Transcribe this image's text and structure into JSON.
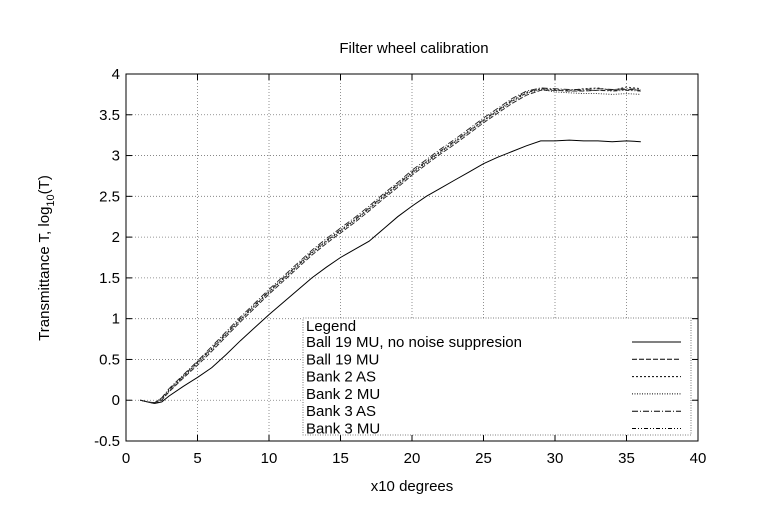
{
  "chart_data": {
    "type": "line",
    "title": "Filter wheel calibration",
    "xlabel": "x10 degrees",
    "ylabel_main": "Transmittance T, log",
    "ylabel_sub": "10",
    "ylabel_tail": "(T)",
    "xlim": [
      0,
      40
    ],
    "ylim": [
      -0.5,
      4
    ],
    "xticks": [
      0,
      5,
      10,
      15,
      20,
      25,
      30,
      35,
      40
    ],
    "yticks": [
      -0.5,
      0,
      0.5,
      1,
      1.5,
      2,
      2.5,
      3,
      3.5,
      4
    ],
    "xtick_labels": [
      "0",
      "5",
      "10",
      "15",
      "20",
      "25",
      "30",
      "35",
      "40"
    ],
    "ytick_labels": [
      "-0.5",
      "0",
      "0.5",
      "1",
      "1.5",
      "2",
      "2.5",
      "3",
      "3.5",
      "4"
    ],
    "grid": true,
    "legend_title": "Legend",
    "legend_position": "bottom-right",
    "series": [
      {
        "name": "Ball 19 MU, no noise suppresion",
        "dash": "",
        "points": [
          [
            1,
            0
          ],
          [
            1.5,
            -0.02
          ],
          [
            2,
            -0.04
          ],
          [
            2.5,
            -0.02
          ],
          [
            3,
            0.05
          ],
          [
            4,
            0.17
          ],
          [
            5,
            0.28
          ],
          [
            6,
            0.4
          ],
          [
            7,
            0.56
          ],
          [
            8,
            0.73
          ],
          [
            9,
            0.89
          ],
          [
            10,
            1.05
          ],
          [
            11,
            1.2
          ],
          [
            12,
            1.35
          ],
          [
            13,
            1.5
          ],
          [
            14,
            1.63
          ],
          [
            15,
            1.75
          ],
          [
            16,
            1.85
          ],
          [
            17,
            1.95
          ],
          [
            18,
            2.1
          ],
          [
            19,
            2.25
          ],
          [
            20,
            2.38
          ],
          [
            21,
            2.5
          ],
          [
            22,
            2.6
          ],
          [
            23,
            2.7
          ],
          [
            24,
            2.8
          ],
          [
            25,
            2.9
          ],
          [
            26,
            2.98
          ],
          [
            27,
            3.05
          ],
          [
            28,
            3.12
          ],
          [
            29,
            3.18
          ],
          [
            30,
            3.18
          ],
          [
            31,
            3.19
          ],
          [
            32,
            3.18
          ],
          [
            33,
            3.18
          ],
          [
            34,
            3.17
          ],
          [
            35,
            3.18
          ],
          [
            36,
            3.17
          ]
        ]
      },
      {
        "name": "Ball 19 MU",
        "dash": "5,2",
        "points": [
          [
            1,
            0
          ],
          [
            1.5,
            -0.02
          ],
          [
            2,
            -0.04
          ],
          [
            2.5,
            0
          ],
          [
            3,
            0.1
          ],
          [
            4,
            0.27
          ],
          [
            5,
            0.43
          ],
          [
            6,
            0.6
          ],
          [
            7,
            0.78
          ],
          [
            8,
            0.96
          ],
          [
            9,
            1.13
          ],
          [
            10,
            1.3
          ],
          [
            11,
            1.46
          ],
          [
            12,
            1.62
          ],
          [
            13,
            1.78
          ],
          [
            14,
            1.92
          ],
          [
            15,
            2.05
          ],
          [
            16,
            2.18
          ],
          [
            17,
            2.32
          ],
          [
            18,
            2.47
          ],
          [
            19,
            2.61
          ],
          [
            20,
            2.76
          ],
          [
            21,
            2.89
          ],
          [
            22,
            3.02
          ],
          [
            23,
            3.14
          ],
          [
            24,
            3.27
          ],
          [
            25,
            3.4
          ],
          [
            26,
            3.52
          ],
          [
            27,
            3.64
          ],
          [
            28,
            3.74
          ],
          [
            29,
            3.8
          ],
          [
            30,
            3.8
          ],
          [
            31,
            3.79
          ],
          [
            32,
            3.79
          ],
          [
            33,
            3.8
          ],
          [
            34,
            3.8
          ],
          [
            35,
            3.81
          ],
          [
            36,
            3.8
          ]
        ]
      },
      {
        "name": "Bank 2 AS",
        "dash": "2,2",
        "points": [
          [
            1,
            0
          ],
          [
            1.5,
            -0.02
          ],
          [
            2,
            -0.03
          ],
          [
            2.5,
            0.02
          ],
          [
            3,
            0.12
          ],
          [
            4,
            0.29
          ],
          [
            5,
            0.46
          ],
          [
            6,
            0.63
          ],
          [
            7,
            0.81
          ],
          [
            8,
            0.99
          ],
          [
            9,
            1.16
          ],
          [
            10,
            1.33
          ],
          [
            11,
            1.49
          ],
          [
            12,
            1.65
          ],
          [
            13,
            1.81
          ],
          [
            14,
            1.95
          ],
          [
            15,
            2.08
          ],
          [
            16,
            2.21
          ],
          [
            17,
            2.35
          ],
          [
            18,
            2.5
          ],
          [
            19,
            2.64
          ],
          [
            20,
            2.79
          ],
          [
            21,
            2.92
          ],
          [
            22,
            3.05
          ],
          [
            23,
            3.17
          ],
          [
            24,
            3.3
          ],
          [
            25,
            3.43
          ],
          [
            26,
            3.55
          ],
          [
            27,
            3.67
          ],
          [
            28,
            3.77
          ],
          [
            29,
            3.82
          ],
          [
            30,
            3.81
          ],
          [
            31,
            3.8
          ],
          [
            32,
            3.82
          ],
          [
            33,
            3.83
          ],
          [
            34,
            3.8
          ],
          [
            35,
            3.84
          ],
          [
            36,
            3.82
          ]
        ]
      },
      {
        "name": "Bank 2 MU",
        "dash": "1,1.5",
        "points": [
          [
            1,
            0
          ],
          [
            1.5,
            -0.02
          ],
          [
            2,
            -0.03
          ],
          [
            2.5,
            0.01
          ],
          [
            3,
            0.11
          ],
          [
            4,
            0.28
          ],
          [
            5,
            0.45
          ],
          [
            6,
            0.62
          ],
          [
            7,
            0.8
          ],
          [
            8,
            0.98
          ],
          [
            9,
            1.15
          ],
          [
            10,
            1.32
          ],
          [
            11,
            1.48
          ],
          [
            12,
            1.64
          ],
          [
            13,
            1.8
          ],
          [
            14,
            1.94
          ],
          [
            15,
            2.07
          ],
          [
            16,
            2.2
          ],
          [
            17,
            2.34
          ],
          [
            18,
            2.49
          ],
          [
            19,
            2.63
          ],
          [
            20,
            2.78
          ],
          [
            21,
            2.91
          ],
          [
            22,
            3.04
          ],
          [
            23,
            3.16
          ],
          [
            24,
            3.29
          ],
          [
            25,
            3.42
          ],
          [
            26,
            3.54
          ],
          [
            27,
            3.66
          ],
          [
            28,
            3.76
          ],
          [
            29,
            3.81
          ],
          [
            30,
            3.78
          ],
          [
            31,
            3.77
          ],
          [
            32,
            3.76
          ],
          [
            33,
            3.76
          ],
          [
            34,
            3.75
          ],
          [
            35,
            3.76
          ],
          [
            36,
            3.75
          ]
        ]
      },
      {
        "name": "Bank 3 AS",
        "dash": "6,2,1,2",
        "points": [
          [
            1,
            0
          ],
          [
            1.5,
            -0.02
          ],
          [
            2,
            -0.03
          ],
          [
            2.5,
            0.03
          ],
          [
            3,
            0.14
          ],
          [
            4,
            0.31
          ],
          [
            5,
            0.48
          ],
          [
            6,
            0.66
          ],
          [
            7,
            0.84
          ],
          [
            8,
            1.02
          ],
          [
            9,
            1.19
          ],
          [
            10,
            1.36
          ],
          [
            11,
            1.52
          ],
          [
            12,
            1.68
          ],
          [
            13,
            1.84
          ],
          [
            14,
            1.98
          ],
          [
            15,
            2.11
          ],
          [
            16,
            2.24
          ],
          [
            17,
            2.38
          ],
          [
            18,
            2.53
          ],
          [
            19,
            2.67
          ],
          [
            20,
            2.82
          ],
          [
            21,
            2.95
          ],
          [
            22,
            3.08
          ],
          [
            23,
            3.2
          ],
          [
            24,
            3.33
          ],
          [
            25,
            3.46
          ],
          [
            26,
            3.58
          ],
          [
            27,
            3.7
          ],
          [
            28,
            3.79
          ],
          [
            29,
            3.83
          ],
          [
            30,
            3.82
          ],
          [
            31,
            3.81
          ],
          [
            32,
            3.81
          ],
          [
            33,
            3.82
          ],
          [
            34,
            3.81
          ],
          [
            35,
            3.82
          ],
          [
            36,
            3.81
          ]
        ]
      },
      {
        "name": "Bank 3 MU",
        "dash": "4,2,1,2,1,2",
        "points": [
          [
            1,
            0
          ],
          [
            1.5,
            -0.02
          ],
          [
            2,
            -0.03
          ],
          [
            2.5,
            0.03
          ],
          [
            3,
            0.13
          ],
          [
            4,
            0.3
          ],
          [
            5,
            0.47
          ],
          [
            6,
            0.64
          ],
          [
            7,
            0.82
          ],
          [
            8,
            1.0
          ],
          [
            9,
            1.17
          ],
          [
            10,
            1.34
          ],
          [
            11,
            1.5
          ],
          [
            12,
            1.66
          ],
          [
            13,
            1.82
          ],
          [
            14,
            1.96
          ],
          [
            15,
            2.09
          ],
          [
            16,
            2.22
          ],
          [
            17,
            2.36
          ],
          [
            18,
            2.51
          ],
          [
            19,
            2.65
          ],
          [
            20,
            2.8
          ],
          [
            21,
            2.93
          ],
          [
            22,
            3.06
          ],
          [
            23,
            3.18
          ],
          [
            24,
            3.31
          ],
          [
            25,
            3.44
          ],
          [
            26,
            3.56
          ],
          [
            27,
            3.68
          ],
          [
            28,
            3.78
          ],
          [
            29,
            3.82
          ],
          [
            30,
            3.8
          ],
          [
            31,
            3.79
          ],
          [
            32,
            3.8
          ],
          [
            33,
            3.8
          ],
          [
            34,
            3.79
          ],
          [
            35,
            3.8
          ],
          [
            36,
            3.79
          ]
        ]
      }
    ]
  }
}
